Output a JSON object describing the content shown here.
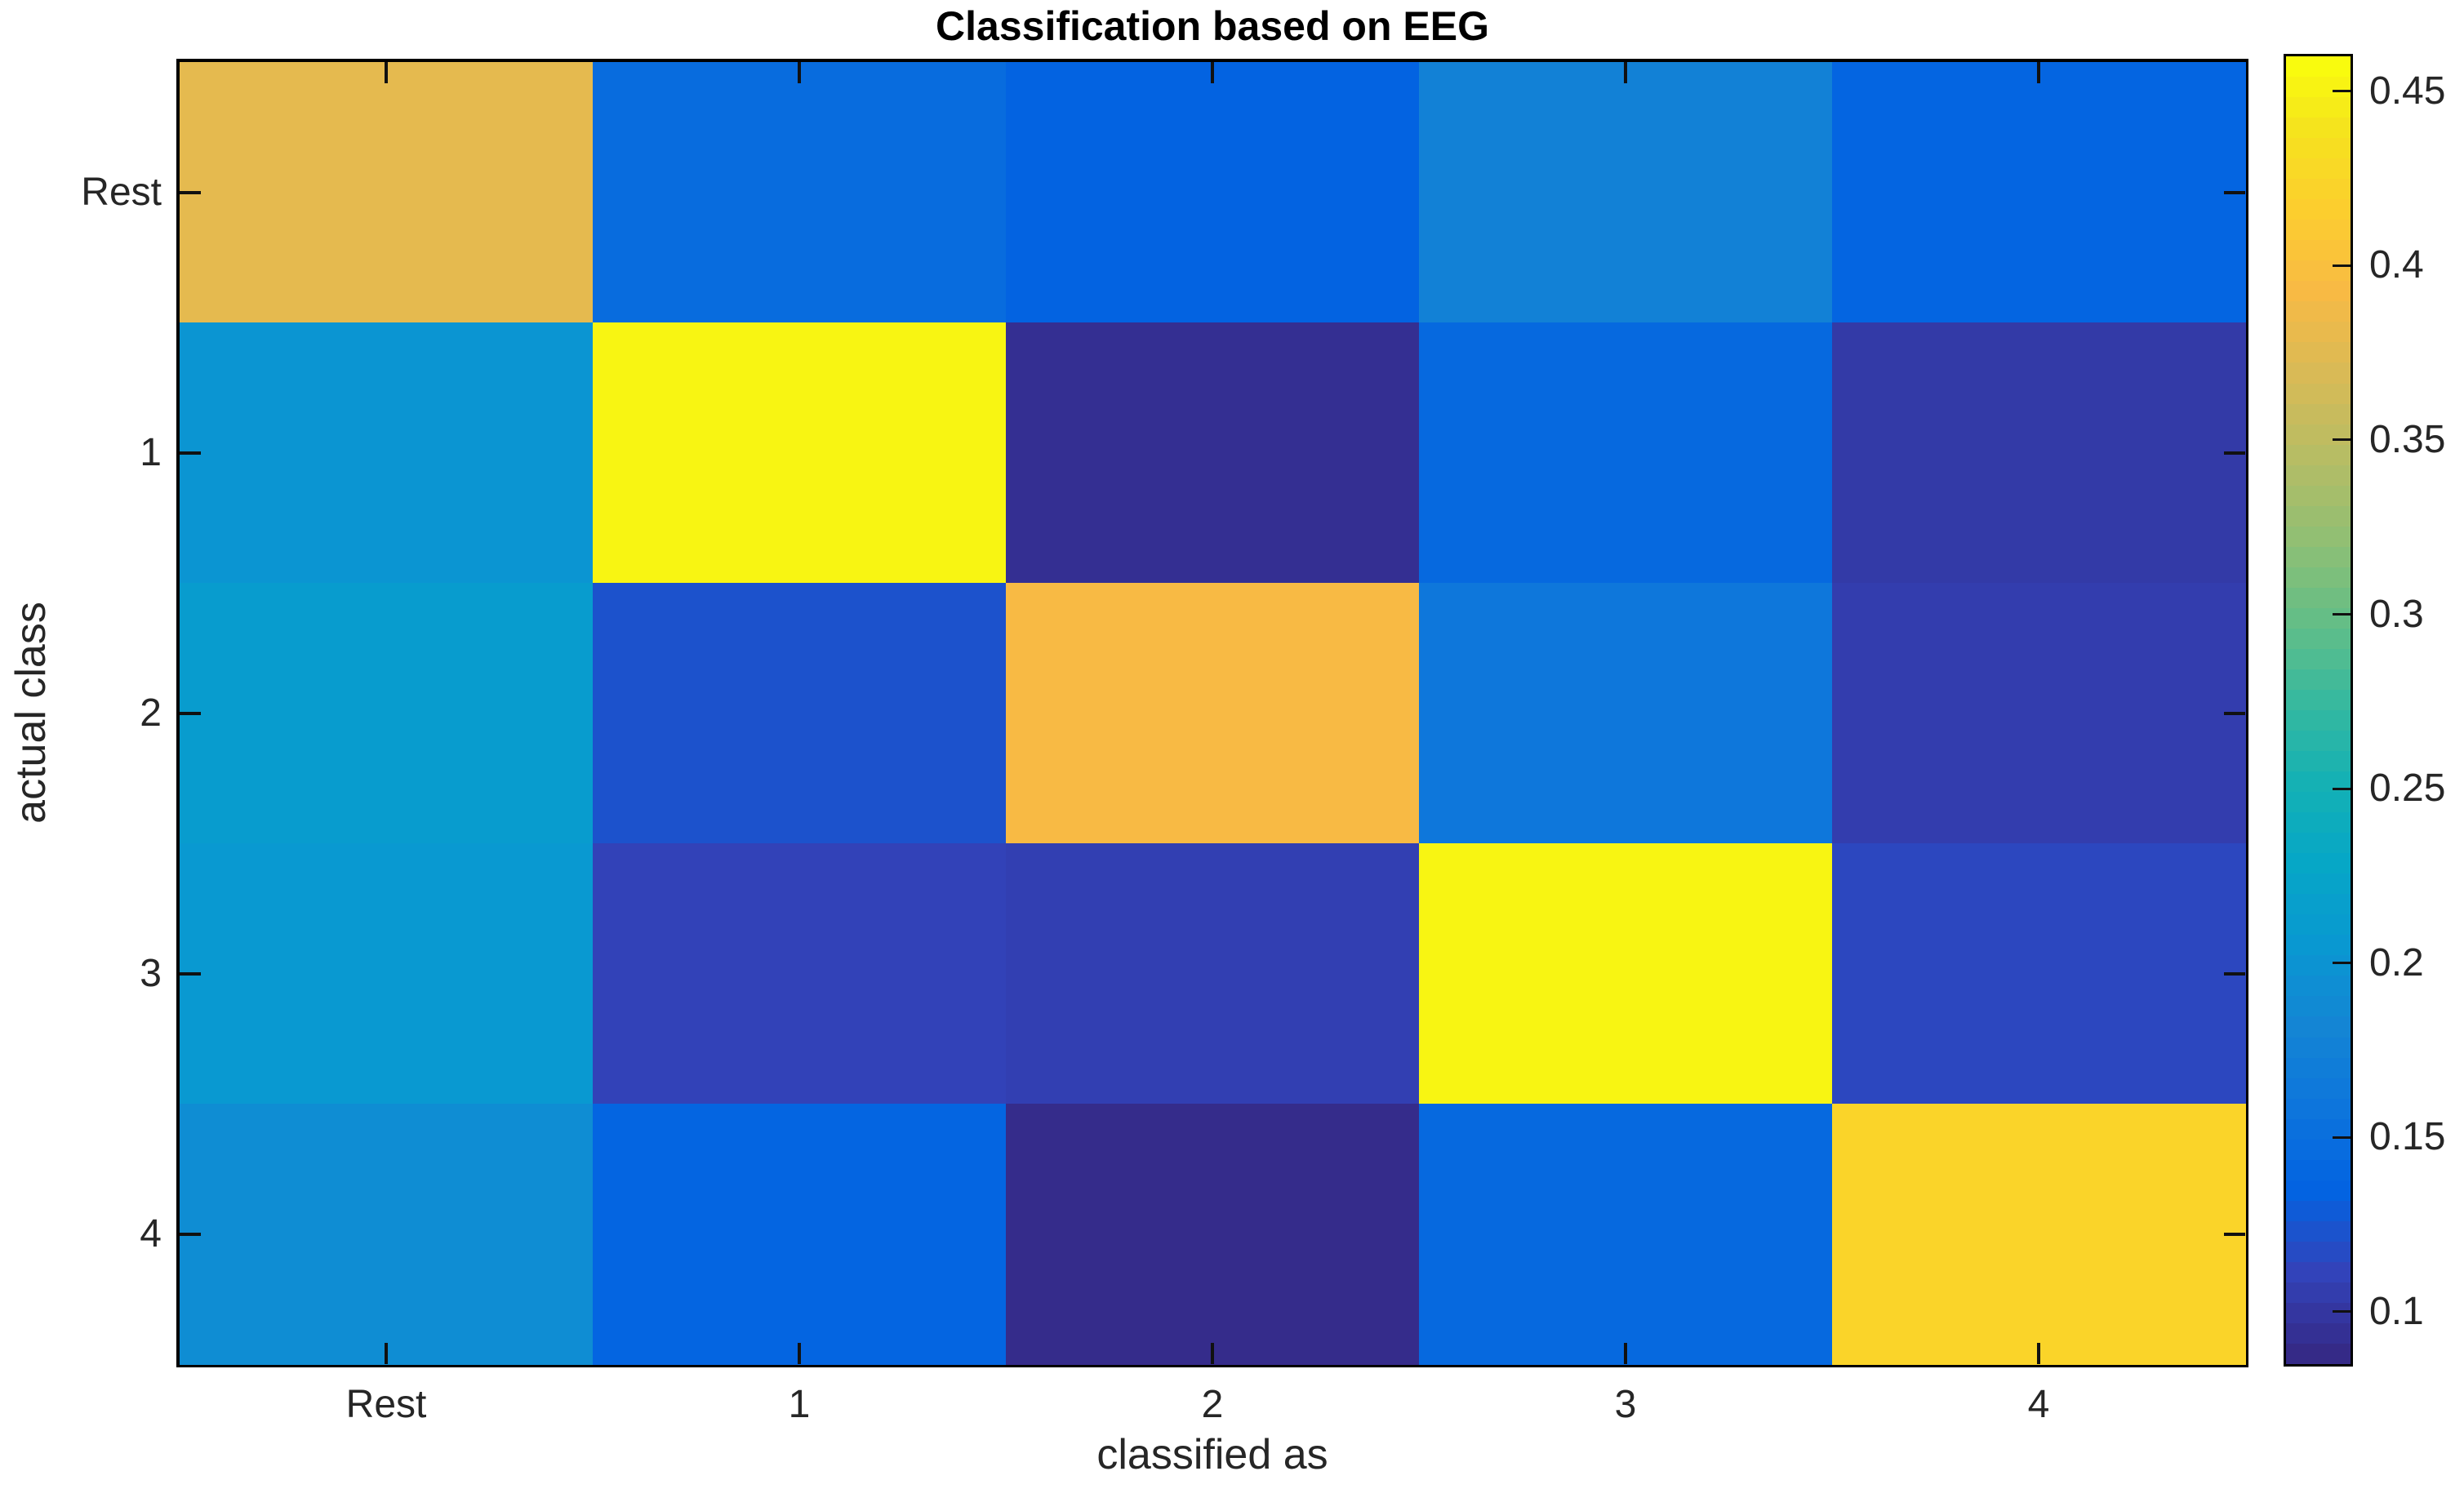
{
  "title": "Classification based on EEG",
  "chart_data": {
    "type": "heatmap",
    "title": "Classification based on EEG",
    "xlabel": "classified as",
    "ylabel": "actual class",
    "x_tick_labels": [
      "Rest",
      "1",
      "2",
      "3",
      "4"
    ],
    "y_tick_labels": [
      "Rest",
      "1",
      "2",
      "3",
      "4"
    ],
    "values": [
      [
        0.38,
        0.145,
        0.133,
        0.175,
        0.135
      ],
      [
        0.2,
        0.455,
        0.09,
        0.14,
        0.1
      ],
      [
        0.21,
        0.12,
        0.395,
        0.16,
        0.103
      ],
      [
        0.205,
        0.108,
        0.105,
        0.455,
        0.112
      ],
      [
        0.19,
        0.135,
        0.087,
        0.14,
        0.425
      ]
    ],
    "vmin": 0.085,
    "vmax": 0.46,
    "colormap": "parula",
    "colormap_levels": 64,
    "grid": false,
    "legend_position": "none",
    "colorbar": {
      "position": "right",
      "tick_values": [
        0.1,
        0.15,
        0.2,
        0.25,
        0.3,
        0.35,
        0.4,
        0.45
      ],
      "tick_labels": [
        "0.1",
        "0.15",
        "0.2",
        "0.25",
        "0.3",
        "0.35",
        "0.4",
        "0.45"
      ]
    }
  },
  "colors": {
    "background": "#ffffff",
    "axis_border": "#000000",
    "tick_mark": "#111111",
    "tick_label": "#262626",
    "title_text": "#000000",
    "parula_low": "#352a87",
    "parula_high": "#f9fb0e"
  }
}
